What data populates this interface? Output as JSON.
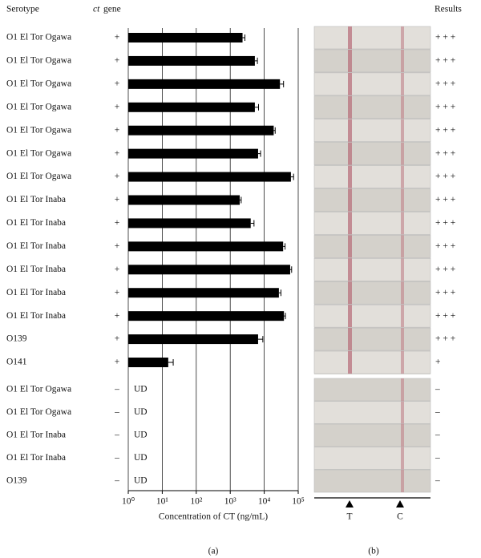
{
  "chart_data": {
    "type": "bar",
    "orientation": "horizontal",
    "xscale": "log",
    "serotype_header": "Serotype",
    "ct_gene_header": [
      "ct",
      "gene"
    ],
    "results_header": "Results",
    "categories": [
      "O1 El Tor Ogawa",
      "O1 El Tor Ogawa",
      "O1 El Tor Ogawa",
      "O1 El Tor Ogawa",
      "O1 El Tor Ogawa",
      "O1 El Tor Ogawa",
      "O1 El Tor Ogawa",
      "O1 El Tor Inaba",
      "O1 El Tor Inaba",
      "O1 El Tor Inaba",
      "O1 El Tor Inaba",
      "O1 El Tor Inaba",
      "O1 El Tor Inaba",
      "O139",
      "O141",
      "O1 El Tor Ogawa",
      "O1 El Tor Ogawa",
      "O1 El Tor Inaba",
      "O1 El Tor Inaba",
      "O139"
    ],
    "ct_gene": [
      "+",
      "+",
      "+",
      "+",
      "+",
      "+",
      "+",
      "+",
      "+",
      "+",
      "+",
      "+",
      "+",
      "+",
      "+",
      "–",
      "–",
      "–",
      "–",
      "–"
    ],
    "values": [
      2300,
      5300,
      29000,
      5300,
      19000,
      6600,
      61000,
      1900,
      4000,
      36000,
      58000,
      27000,
      38000,
      6600,
      15,
      null,
      null,
      null,
      null,
      null
    ],
    "errors": [
      400,
      1000,
      8000,
      1500,
      2000,
      1200,
      12000,
      200,
      1000,
      5000,
      6000,
      4000,
      4000,
      2500,
      6,
      null,
      null,
      null,
      null,
      null
    ],
    "value_labels": [
      null,
      null,
      null,
      null,
      null,
      null,
      null,
      null,
      null,
      null,
      null,
      null,
      null,
      null,
      null,
      "UD",
      "UD",
      "UD",
      "UD",
      "UD"
    ],
    "results": [
      "+ + +",
      "+ + +",
      "+ + +",
      "+ + +",
      "+ + +",
      "+ + +",
      "+ + +",
      "+ + +",
      "+ + +",
      "+ + +",
      "+ + +",
      "+ + +",
      "+ + +",
      "+ + +",
      "+",
      "–",
      "–",
      "–",
      "–",
      "–"
    ],
    "color": "#000000",
    "xlim": [
      1,
      100000
    ],
    "xticks": [
      {
        "value": 1,
        "label": "10⁰"
      },
      {
        "value": 10,
        "label": "10¹"
      },
      {
        "value": 100,
        "label": "10²"
      },
      {
        "value": 1000,
        "label": "10³"
      },
      {
        "value": 10000,
        "label": "10⁴"
      },
      {
        "value": 100000,
        "label": "10⁵"
      }
    ],
    "grid": true,
    "xlabel": "Concentration of CT (ng/mL)",
    "panel_labels": [
      "(a)",
      "(b)"
    ],
    "strip_labels": [
      "T",
      "C"
    ]
  }
}
